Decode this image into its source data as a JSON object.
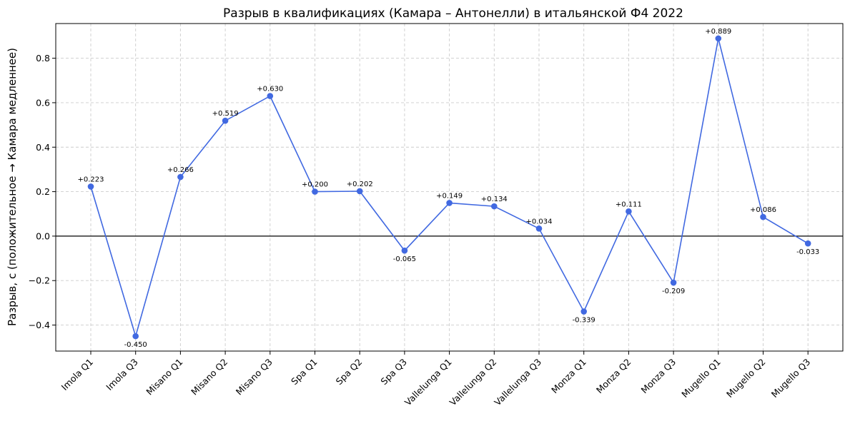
{
  "chart_data": {
    "type": "line",
    "title": "Разрыв в квалификациях (Камара – Антонелли) в итальянской Ф4 2022",
    "xlabel": "",
    "ylabel": "Разрыв, с (положительное → Камара медленнее)",
    "categories": [
      "Imola Q1",
      "Imola Q3",
      "Misano Q1",
      "Misano Q2",
      "Misano Q3",
      "Spa Q1",
      "Spa Q2",
      "Spa Q3",
      "Vallelunga Q1",
      "Vallelunga Q2",
      "Vallelunga Q3",
      "Monza Q1",
      "Monza Q2",
      "Monza Q3",
      "Mugello Q1",
      "Mugello Q2",
      "Mugello Q3"
    ],
    "values": [
      0.223,
      -0.45,
      0.266,
      0.519,
      0.63,
      0.2,
      0.202,
      -0.065,
      0.149,
      0.134,
      0.034,
      -0.339,
      0.111,
      -0.209,
      0.889,
      0.086,
      -0.033
    ],
    "value_labels": [
      "+0.223",
      "-0.450",
      "+0.266",
      "+0.519",
      "+0.630",
      "+0.200",
      "+0.202",
      "-0.065",
      "+0.149",
      "+0.134",
      "+0.034",
      "-0.339",
      "+0.111",
      "-0.209",
      "+0.889",
      "+0.086",
      "-0.033"
    ],
    "ylim": [
      -0.517,
      0.956
    ],
    "yticks": [
      -0.4,
      -0.2,
      0.0,
      0.2,
      0.4,
      0.6,
      0.8
    ],
    "ytick_labels": [
      "−0.4",
      "−0.2",
      "0.0",
      "0.2",
      "0.4",
      "0.6",
      "0.8"
    ],
    "reference_line_y": 0,
    "grid": true,
    "colors": {
      "line": "#4169e1",
      "marker": "#4169e1",
      "zero_line": "#000000"
    }
  }
}
